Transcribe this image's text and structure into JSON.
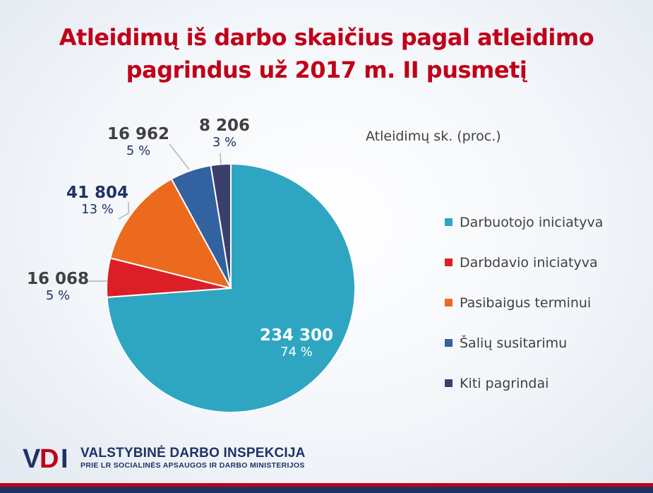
{
  "title": "Atleidimų iš darbo skaičius pagal atleidimo pagrindus už 2017 m. II pusmetį",
  "chart_data": {
    "type": "pie",
    "title": "Atleidimų iš darbo skaičius pagal atleidimo pagrindus už 2017 m. II pusmetį",
    "subtitle": "Atleidimų sk. (proc.)",
    "legend_position": "right",
    "categories": [
      "Darbuotojo iniciatyva",
      "Darbdavio iniciatyva",
      "Pasibaigus terminui",
      "Šalių susitarimu",
      "Kiti pagrindai"
    ],
    "values": [
      234300,
      16068,
      41804,
      16962,
      8206
    ],
    "value_labels": [
      "234 300",
      "16 068",
      "41 804",
      "16 962",
      "8 206"
    ],
    "percent_labels": [
      "74 %",
      "5 %",
      "13 %",
      "5 %",
      "3 %"
    ],
    "colors": [
      "#2ea6c2",
      "#dc1f26",
      "#ec6a1e",
      "#3262a0",
      "#3b3f6b"
    ]
  },
  "logo": {
    "mark": "VDI",
    "name": "VALSTYBINĖ DARBO INSPEKCIJA",
    "sub": "PRIE LR SOCIALINĖS APSAUGOS IR DARBO MINISTERIJOS"
  }
}
